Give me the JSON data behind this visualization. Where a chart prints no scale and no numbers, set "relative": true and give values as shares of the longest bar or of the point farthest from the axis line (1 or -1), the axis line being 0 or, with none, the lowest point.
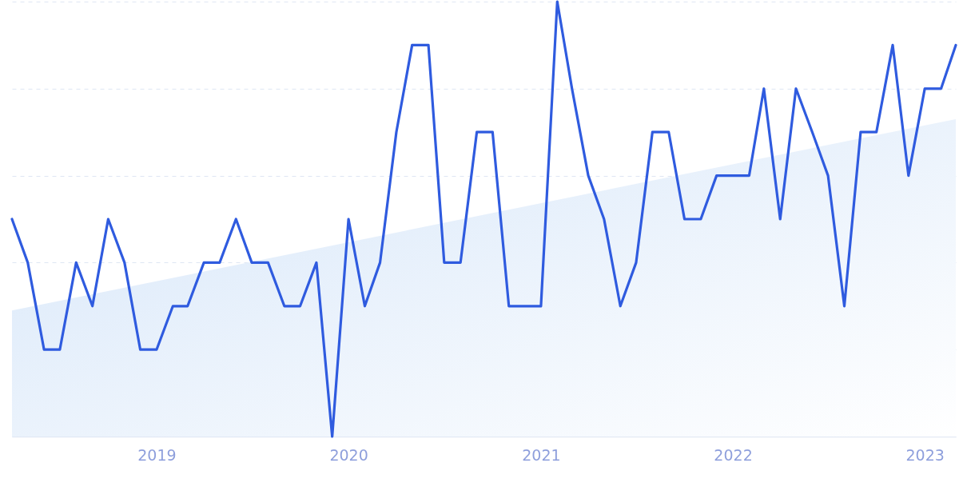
{
  "chart_data": {
    "type": "line",
    "relative": true,
    "grid": "y",
    "line_style": "solid",
    "marker": "none",
    "x": [
      "2018-04",
      "2018-05",
      "2018-06",
      "2018-07",
      "2018-08",
      "2018-09",
      "2018-10",
      "2018-11",
      "2018-12",
      "2019-01",
      "2019-02",
      "2019-03",
      "2019-04",
      "2019-05",
      "2019-06",
      "2019-07",
      "2019-08",
      "2019-09",
      "2019-10",
      "2019-11",
      "2019-12",
      "2020-01",
      "2020-02",
      "2020-03",
      "2020-04",
      "2020-05",
      "2020-06",
      "2020-07",
      "2020-08",
      "2020-09",
      "2020-10",
      "2020-11",
      "2020-12",
      "2021-01",
      "2021-02",
      "2021-03",
      "2021-04",
      "2021-05",
      "2021-06",
      "2021-07",
      "2021-08",
      "2021-09",
      "2021-10",
      "2021-11",
      "2021-12",
      "2022-01",
      "2022-02",
      "2022-03",
      "2022-04",
      "2022-05",
      "2022-06",
      "2022-07",
      "2022-08",
      "2022-09",
      "2022-10",
      "2022-11",
      "2022-12",
      "2023-01",
      "2023-02",
      "2023-03"
    ],
    "xlim": [
      "2018-04",
      "2023-03"
    ],
    "xticks": [
      {
        "value": "2019",
        "label": "2019"
      },
      {
        "value": "2020",
        "label": "2020"
      },
      {
        "value": "2021",
        "label": "2021"
      },
      {
        "value": "2022",
        "label": "2022"
      },
      {
        "value": "2023",
        "label": "2023"
      }
    ],
    "series": [
      {
        "type": "area",
        "color": "#d6e6f9",
        "x": [
          "2018-04",
          "2023-03"
        ],
        "values": [
          0.29,
          0.73
        ]
      },
      {
        "color": "#2f5bdf",
        "values": [
          0.5,
          0.4,
          0.2,
          0.2,
          0.4,
          0.3,
          0.5,
          0.4,
          0.2,
          0.2,
          0.3,
          0.3,
          0.4,
          0.4,
          0.5,
          0.4,
          0.4,
          0.3,
          0.3,
          0.4,
          0,
          0.5,
          0.3,
          0.4,
          0.7,
          0.9,
          0.9,
          0.4,
          0.4,
          0.7,
          0.7,
          0.3,
          0.3,
          0.3,
          1,
          0.8,
          0.6,
          0.5,
          0.3,
          0.4,
          0.7,
          0.7,
          0.5,
          0.5,
          0.6,
          0.6,
          0.6,
          0.8,
          0.5,
          0.8,
          0.7,
          0.6,
          0.3,
          0.7,
          0.7,
          0.9,
          0.6,
          0.8,
          0.8,
          0.9
        ]
      }
    ]
  }
}
